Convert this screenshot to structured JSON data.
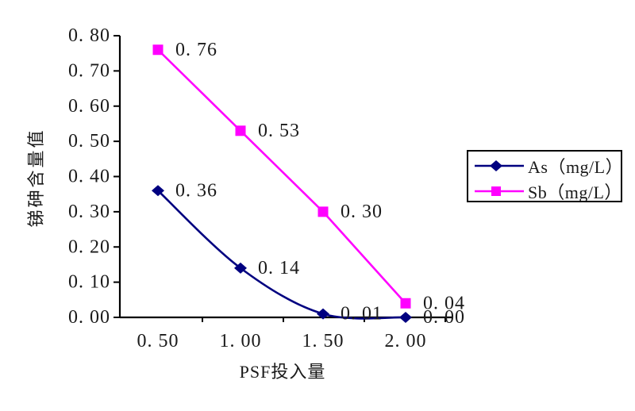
{
  "chart_data": {
    "type": "line",
    "title": "",
    "xlabel": "PSF投入量",
    "ylabel": "锑砷含量值",
    "categories": [
      0.5,
      1.0,
      1.5,
      2.0
    ],
    "x_tick_labels": [
      "0. 50",
      "1. 00",
      "1. 50",
      "2. 00"
    ],
    "y_tick_values": [
      0.0,
      0.1,
      0.2,
      0.3,
      0.4,
      0.5,
      0.6,
      0.7,
      0.8
    ],
    "y_tick_labels": [
      "0. 00",
      "0. 10",
      "0. 20",
      "0. 30",
      "0. 40",
      "0. 50",
      "0. 60",
      "0. 70",
      "0. 80"
    ],
    "ylim": [
      0.0,
      0.8
    ],
    "grid": false,
    "legend_position": "right",
    "axis_color": "#000000",
    "text_color": "#1a1a1a",
    "background": "#ffffff",
    "series": [
      {
        "name": "As（mg/L）",
        "color": "#000080",
        "marker": "diamond",
        "smooth": true,
        "values": [
          0.36,
          0.14,
          0.01,
          0.0
        ],
        "data_labels": [
          "0. 36",
          "0. 14",
          "0. 01",
          "0. 00"
        ]
      },
      {
        "name": "Sb（mg/L）",
        "color": "#FF00FF",
        "marker": "square",
        "smooth": false,
        "values": [
          0.76,
          0.53,
          0.3,
          0.04
        ],
        "data_labels": [
          "0. 76",
          "0. 53",
          "0. 30",
          "0. 04"
        ]
      }
    ]
  }
}
